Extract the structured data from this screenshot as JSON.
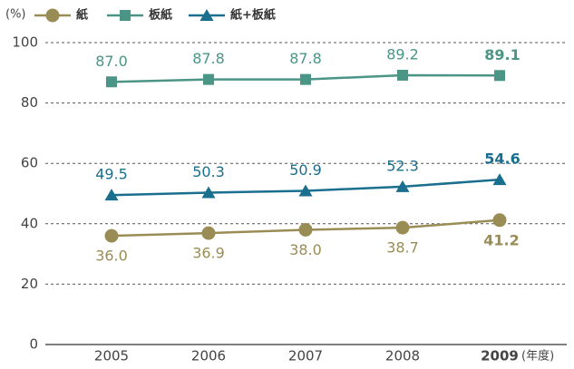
{
  "chart_data": {
    "type": "line",
    "y_unit": "(%)",
    "x_unit": "(年度)",
    "categories": [
      "2005",
      "2006",
      "2007",
      "2008",
      "2009"
    ],
    "series": [
      {
        "name": "紙",
        "color": "#9a8c55",
        "marker": "circle",
        "values": [
          36.0,
          36.9,
          38.0,
          38.7,
          41.2
        ],
        "value_labels": [
          "36.0",
          "36.9",
          "38.0",
          "38.7",
          "41.2"
        ]
      },
      {
        "name": "板紙",
        "color": "#4a9585",
        "marker": "square",
        "values": [
          87.0,
          87.8,
          87.8,
          89.2,
          89.1
        ],
        "value_labels": [
          "87.0",
          "87.8",
          "87.8",
          "89.2",
          "89.1"
        ]
      },
      {
        "name": "紙+板紙",
        "color": "#1a6e8e",
        "marker": "triangle",
        "values": [
          49.5,
          50.3,
          50.9,
          52.3,
          54.6
        ],
        "value_labels": [
          "49.5",
          "50.3",
          "50.9",
          "52.3",
          "54.6"
        ]
      }
    ],
    "ylim": [
      0,
      100
    ],
    "yticks": [
      0,
      20,
      40,
      60,
      80,
      100
    ],
    "grid": true
  }
}
